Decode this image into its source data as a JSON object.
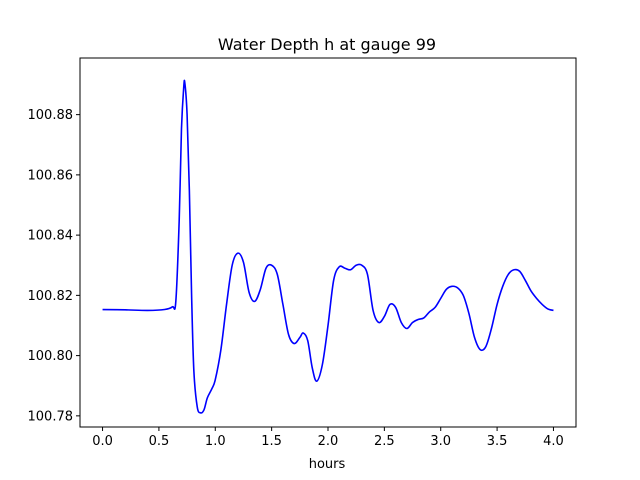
{
  "chart_data": {
    "type": "line",
    "title": "Water Depth h at gauge 99",
    "xlabel": "hours",
    "ylabel": "",
    "xlim": [
      -0.2,
      4.2
    ],
    "ylim": [
      100.7763,
      100.8988
    ],
    "x_ticks": [
      0.0,
      0.5,
      1.0,
      1.5,
      2.0,
      2.5,
      3.0,
      3.5,
      4.0
    ],
    "x_tick_labels": [
      "0.0",
      "0.5",
      "1.0",
      "1.5",
      "2.0",
      "2.5",
      "3.0",
      "3.5",
      "4.0"
    ],
    "y_ticks": [
      100.78,
      100.8,
      100.82,
      100.84,
      100.86,
      100.88
    ],
    "y_tick_labels": [
      "100.78",
      "100.80",
      "100.82",
      "100.84",
      "100.86",
      "100.88"
    ],
    "grid": false,
    "series": [
      {
        "color": "#0000ff",
        "points": [
          [
            0.0,
            100.8153
          ],
          [
            0.2,
            100.8152
          ],
          [
            0.4,
            100.815
          ],
          [
            0.55,
            100.8153
          ],
          [
            0.62,
            100.8162
          ],
          [
            0.65,
            100.818
          ],
          [
            0.68,
            100.845
          ],
          [
            0.7,
            100.875
          ],
          [
            0.72,
            100.889
          ],
          [
            0.73,
            100.8905
          ],
          [
            0.75,
            100.88
          ],
          [
            0.77,
            100.855
          ],
          [
            0.79,
            100.82
          ],
          [
            0.81,
            100.795
          ],
          [
            0.84,
            100.783
          ],
          [
            0.87,
            100.781
          ],
          [
            0.9,
            100.782
          ],
          [
            0.93,
            100.786
          ],
          [
            0.97,
            100.789
          ],
          [
            1.0,
            100.792
          ],
          [
            1.05,
            100.802
          ],
          [
            1.1,
            100.817
          ],
          [
            1.15,
            100.83
          ],
          [
            1.2,
            100.834
          ],
          [
            1.25,
            100.831
          ],
          [
            1.3,
            100.821
          ],
          [
            1.35,
            100.818
          ],
          [
            1.4,
            100.822
          ],
          [
            1.45,
            100.829
          ],
          [
            1.5,
            100.83
          ],
          [
            1.55,
            100.827
          ],
          [
            1.6,
            100.817
          ],
          [
            1.65,
            100.807
          ],
          [
            1.7,
            100.804
          ],
          [
            1.75,
            100.806
          ],
          [
            1.78,
            100.8075
          ],
          [
            1.82,
            100.805
          ],
          [
            1.86,
            100.796
          ],
          [
            1.9,
            100.7915
          ],
          [
            1.95,
            100.797
          ],
          [
            2.0,
            100.81
          ],
          [
            2.05,
            100.825
          ],
          [
            2.1,
            100.8295
          ],
          [
            2.15,
            100.829
          ],
          [
            2.2,
            100.8285
          ],
          [
            2.25,
            100.83
          ],
          [
            2.3,
            100.83
          ],
          [
            2.35,
            100.827
          ],
          [
            2.4,
            100.815
          ],
          [
            2.45,
            100.811
          ],
          [
            2.5,
            100.813
          ],
          [
            2.55,
            100.817
          ],
          [
            2.6,
            100.816
          ],
          [
            2.65,
            100.811
          ],
          [
            2.7,
            100.809
          ],
          [
            2.75,
            100.811
          ],
          [
            2.8,
            100.812
          ],
          [
            2.85,
            100.8125
          ],
          [
            2.9,
            100.8145
          ],
          [
            2.95,
            100.816
          ],
          [
            3.0,
            100.819
          ],
          [
            3.05,
            100.822
          ],
          [
            3.1,
            100.823
          ],
          [
            3.15,
            100.8225
          ],
          [
            3.2,
            100.82
          ],
          [
            3.25,
            100.814
          ],
          [
            3.3,
            100.806
          ],
          [
            3.35,
            100.802
          ],
          [
            3.4,
            100.803
          ],
          [
            3.45,
            100.809
          ],
          [
            3.5,
            100.817
          ],
          [
            3.55,
            100.823
          ],
          [
            3.6,
            100.827
          ],
          [
            3.65,
            100.8285
          ],
          [
            3.7,
            100.828
          ],
          [
            3.75,
            100.825
          ],
          [
            3.8,
            100.8215
          ],
          [
            3.85,
            100.819
          ],
          [
            3.9,
            100.817
          ],
          [
            3.95,
            100.8155
          ],
          [
            4.0,
            100.815
          ]
        ]
      }
    ]
  }
}
